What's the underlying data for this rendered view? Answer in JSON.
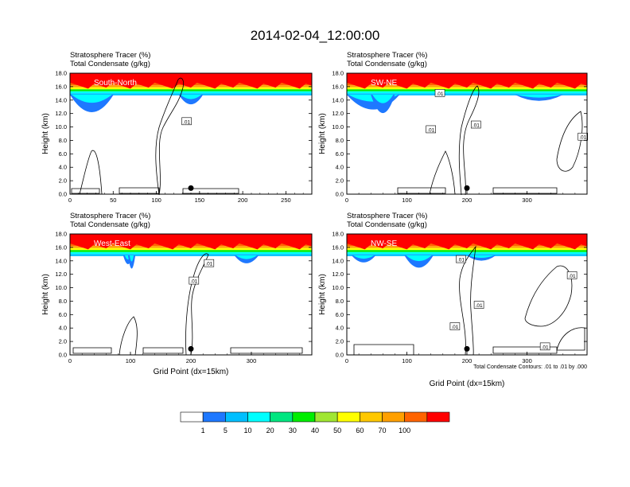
{
  "title": "2014-02-04_12:00:00",
  "colorbar": {
    "labels": [
      "1",
      "5",
      "10",
      "20",
      "30",
      "40",
      "50",
      "60",
      "70",
      "100"
    ],
    "colors": [
      "#ffffff",
      "#1e78ff",
      "#00bfff",
      "#00ffff",
      "#00e680",
      "#00ee00",
      "#a0e632",
      "#ffff00",
      "#ffc800",
      "#ffa000",
      "#ff6400",
      "#ff0000"
    ]
  },
  "contour_note": "Total Condensate Contours: .01 to .01 by .000",
  "chart_data": [
    {
      "type": "heatmap",
      "region_label": "South-North",
      "title_lines": [
        "Stratosphere Tracer   (%)",
        "Total Condensate   (g/kg)"
      ],
      "ylabel": "Height (km)",
      "xlabel": "",
      "xlim": [
        0,
        280
      ],
      "xticks": [
        "0",
        "50",
        "100",
        "150",
        "200",
        "250"
      ],
      "ylim": [
        0,
        18
      ],
      "yticks": [
        "0.0",
        "2.0",
        "4.0",
        "6.0",
        "8.0",
        "10.0",
        "12.0",
        "14.0",
        "16.0",
        "18.0"
      ],
      "marker_x": 140,
      "contour_labels": [
        {
          "text": ".01",
          "x": 135,
          "y": 10.8
        }
      ]
    },
    {
      "type": "heatmap",
      "region_label": "SW-NE",
      "title_lines": [
        "Stratosphere Tracer   (%)",
        "Total Condensate   (g/kg)"
      ],
      "ylabel": "Height (km)",
      "xlabel": "",
      "xlim": [
        0,
        400
      ],
      "xticks": [
        "0",
        "100",
        "200",
        "300"
      ],
      "ylim": [
        0,
        18
      ],
      "yticks": [
        "0.0",
        "2.0",
        "4.0",
        "6.0",
        "8.0",
        "10.0",
        "12.0",
        "14.0",
        "16.0",
        "18.0"
      ],
      "marker_x": 200,
      "contour_labels": [
        {
          "text": ".01",
          "x": 155,
          "y": 15.0
        },
        {
          "text": ".01",
          "x": 140,
          "y": 9.6
        },
        {
          "text": ".01",
          "x": 215,
          "y": 10.3
        },
        {
          "text": ".01",
          "x": 393,
          "y": 8.5
        }
      ]
    },
    {
      "type": "heatmap",
      "region_label": "West-East",
      "title_lines": [
        "Stratosphere Tracer   (%)",
        "Total Condensate   (g/kg)"
      ],
      "ylabel": "Height (km)",
      "xlabel": "Grid Point (dx=15km)",
      "xlim": [
        0,
        400
      ],
      "xticks": [
        "0",
        "100",
        "200",
        "300"
      ],
      "ylim": [
        0,
        18
      ],
      "yticks": [
        "0.0",
        "2.0",
        "4.0",
        "6.0",
        "8.0",
        "10.0",
        "12.0",
        "14.0",
        "16.0",
        "18.0"
      ],
      "marker_x": 200,
      "contour_labels": [
        {
          "text": ".01",
          "x": 230,
          "y": 13.6
        },
        {
          "text": ".01",
          "x": 205,
          "y": 11.0
        }
      ]
    },
    {
      "type": "heatmap",
      "region_label": "NW-SE",
      "title_lines": [
        "Stratosphere Tracer   (%)",
        "Total Condensate   (g/kg)"
      ],
      "ylabel": "Height (km)",
      "xlabel": "Grid Point (dx=15km)",
      "xlim": [
        0,
        400
      ],
      "xticks": [
        "0",
        "100",
        "200",
        "300"
      ],
      "ylim": [
        0,
        18
      ],
      "yticks": [
        "0.0",
        "2.0",
        "4.0",
        "6.0",
        "8.0",
        "10.0",
        "12.0",
        "14.0",
        "16.0",
        "18.0"
      ],
      "marker_x": 200,
      "contour_labels": [
        {
          "text": ".01",
          "x": 190,
          "y": 14.2
        },
        {
          "text": ".01",
          "x": 375,
          "y": 11.8
        },
        {
          "text": ".01",
          "x": 220,
          "y": 7.4
        },
        {
          "text": ".01",
          "x": 180,
          "y": 4.2
        },
        {
          "text": ".01",
          "x": 330,
          "y": 1.2
        }
      ]
    }
  ]
}
